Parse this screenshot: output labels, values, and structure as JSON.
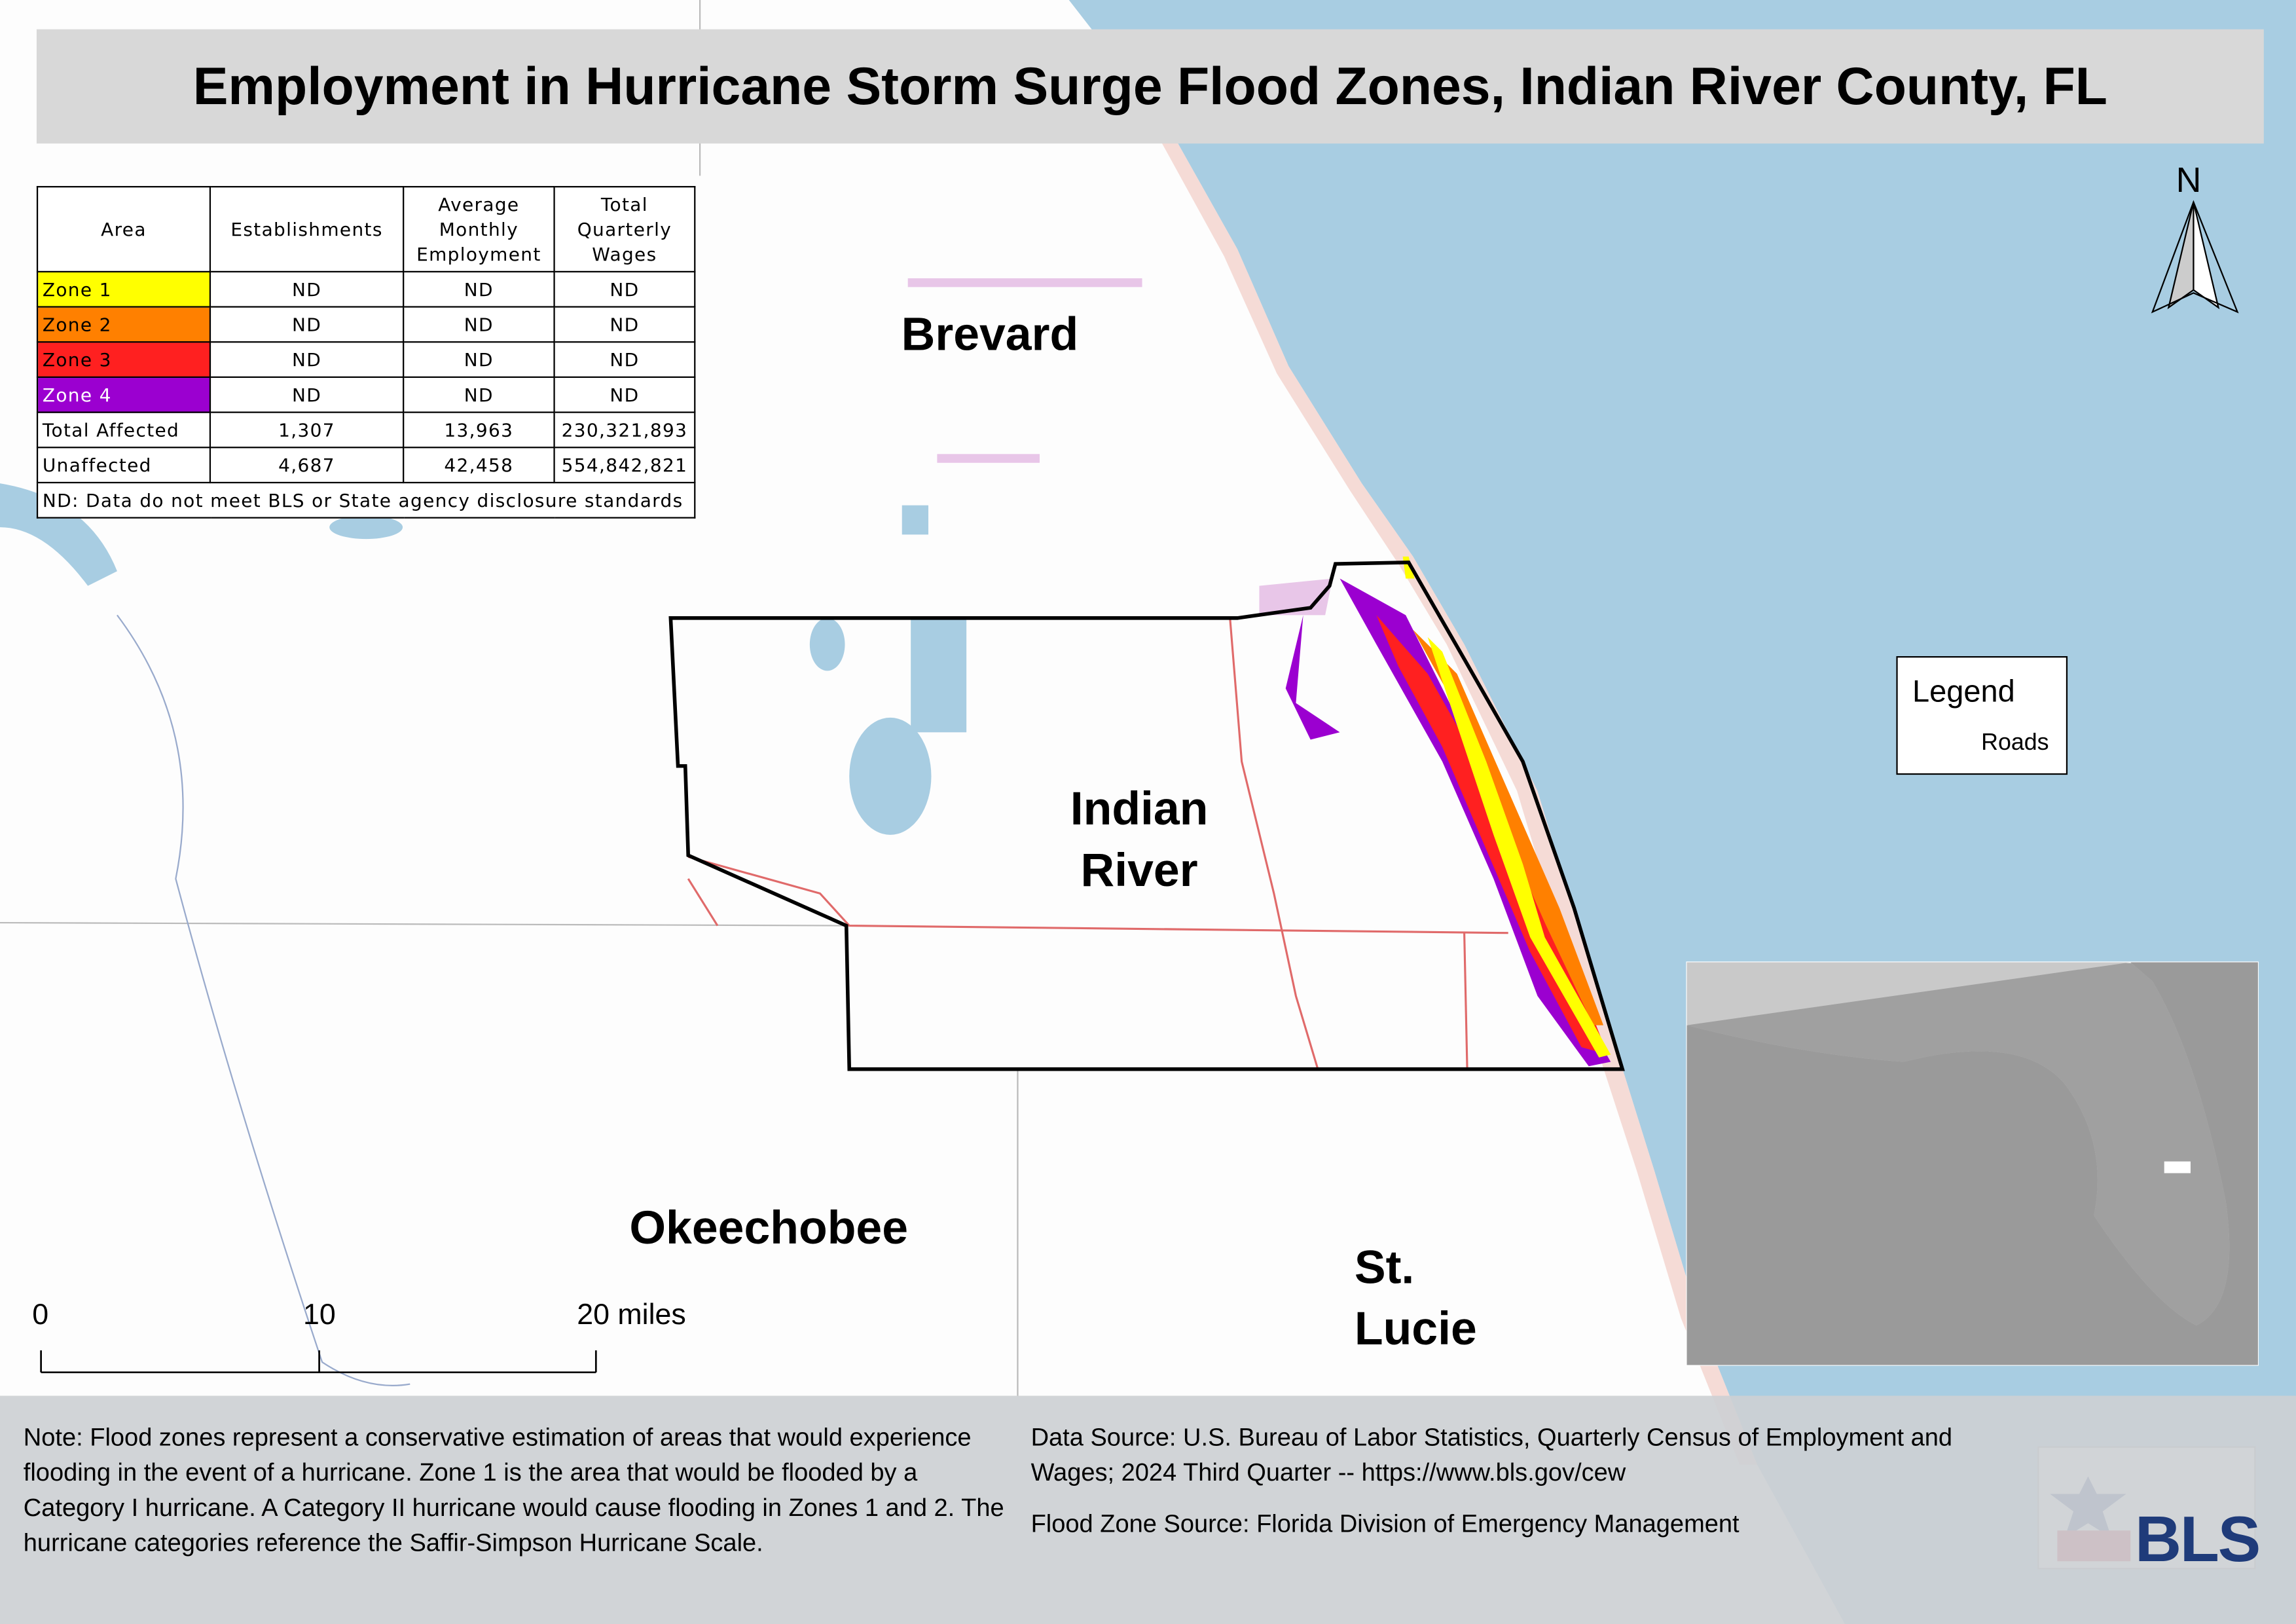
{
  "title": "Employment in Hurricane Storm Surge Flood Zones, Indian River County, FL",
  "table": {
    "headers": [
      "Area",
      "Establishments",
      "Average Monthly Employment",
      "Total Quarterly Wages"
    ],
    "rows": [
      [
        "Zone 1",
        "ND",
        "ND",
        "ND"
      ],
      [
        "Zone 2",
        "ND",
        "ND",
        "ND"
      ],
      [
        "Zone 3",
        "ND",
        "ND",
        "ND"
      ],
      [
        "Zone 4",
        "ND",
        "ND",
        "ND"
      ],
      [
        "Total Affected",
        "1,307",
        "13,963",
        "230,321,893"
      ],
      [
        "Unaffected",
        "4,687",
        "42,458",
        "554,842,821"
      ]
    ],
    "footnote": "ND: Data do not meet BLS or State agency disclosure standards"
  },
  "county_labels": [
    "Brevard",
    "Indian River",
    "Okeechobee",
    "St. Lucie"
  ],
  "north": "N",
  "legend": {
    "title": "Legend",
    "items": [
      "Roads"
    ]
  },
  "scale_labels": [
    "0",
    "10",
    "20 miles"
  ],
  "note": "Note: Flood zones represent a conservative estimation of areas that would experience flooding in the event of a hurricane. Zone 1 is the area that would be flooded by a Category I hurricane. A Category II hurricane would cause flooding in Zones 1 and 2. The hurricane categories reference the Saffir-Simpson Hurricane Scale.",
  "data_source": "Data Source: U.S. Bureau of Labor Statistics, Quarterly Census of Employment and Wages; 2024 Third Quarter -- https://www.bls.gov/cew",
  "flood_source": "Flood Zone Source: Florida Division of Emergency Management",
  "logo": "BLS"
}
